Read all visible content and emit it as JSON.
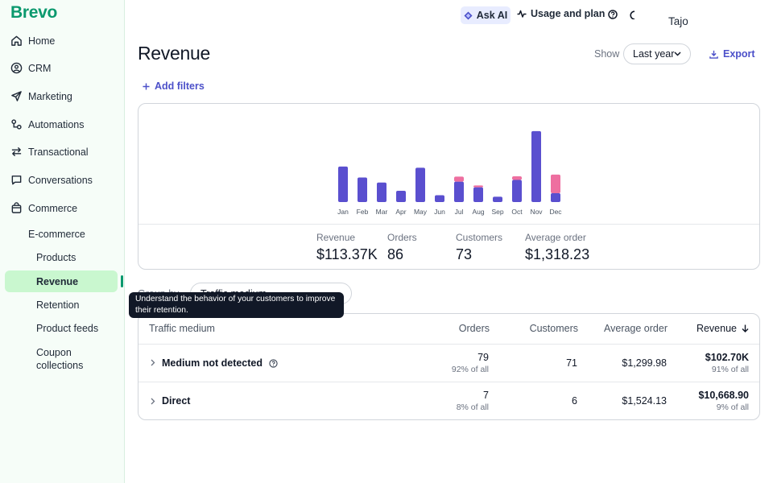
{
  "sidebar": {
    "logo": "Brevo",
    "items": [
      {
        "label": "Home",
        "icon": "home-icon"
      },
      {
        "label": "CRM",
        "icon": "contacts-icon"
      },
      {
        "label": "Marketing",
        "icon": "send-icon"
      },
      {
        "label": "Automations",
        "icon": "automation-icon"
      },
      {
        "label": "Transactional",
        "icon": "transfer-icon"
      },
      {
        "label": "Conversations",
        "icon": "chat-icon"
      },
      {
        "label": "Commerce",
        "icon": "bag-icon"
      }
    ],
    "ecommerce_label": "E-commerce",
    "sub_items": [
      "Products",
      "Revenue",
      "Retention",
      "Product feeds",
      "Coupon collections"
    ]
  },
  "topbar": {
    "ask_ai": "Ask AI",
    "usage": "Usage and plan",
    "user": "Tajo"
  },
  "header": {
    "title": "Revenue",
    "show_label": "Show",
    "range": "Last year",
    "export": "Export",
    "add_filters": "Add filters"
  },
  "chart_data": {
    "type": "bar",
    "stacked": true,
    "categories": [
      "Jan",
      "Feb",
      "Mar",
      "Apr",
      "May",
      "Jun",
      "Jul",
      "Aug",
      "Sep",
      "Oct",
      "Nov",
      "Dec"
    ],
    "series": [
      {
        "color": "#5a4fcf",
        "values": [
          12.0,
          8.3,
          6.6,
          3.8,
          11.6,
          2.3,
          6.9,
          5.0,
          1.8,
          7.5,
          24.0,
          3.0
        ]
      },
      {
        "color": "#ee6fa0",
        "values": [
          0,
          0,
          0,
          0,
          0,
          0,
          1.7,
          0.6,
          0,
          1.2,
          0,
          6.3
        ]
      }
    ],
    "ylim": [
      0,
      24.5
    ],
    "grid": false
  },
  "kpis": [
    {
      "label": "Revenue",
      "value": "$113.37K"
    },
    {
      "label": "Orders",
      "value": "86"
    },
    {
      "label": "Customers",
      "value": "73"
    },
    {
      "label": "Average order",
      "value": "$1,318.23"
    }
  ],
  "groupby": {
    "label": "Group by",
    "value": "Traffic medium"
  },
  "tooltip": "Understand the behavior of your customers to improve their retention.",
  "table": {
    "headers": {
      "medium": "Traffic medium",
      "orders": "Orders",
      "customers": "Customers",
      "avg": "Average order",
      "revenue": "Revenue"
    },
    "rows": [
      {
        "name": "Medium not detected",
        "orders": "79",
        "orders_pct": "92% of all",
        "customers": "71",
        "avg": "$1,299.98",
        "revenue": "$102.70K",
        "revenue_pct": "91% of all"
      },
      {
        "name": "Direct",
        "orders": "7",
        "orders_pct": "8% of all",
        "customers": "6",
        "avg": "$1,524.13",
        "revenue": "$10,668.90",
        "revenue_pct": "9% of all"
      }
    ]
  },
  "colors": {
    "brand_green": "#0b996e",
    "accent_purple": "#4c50c9",
    "bar_primary": "#5a4fcf",
    "bar_secondary": "#ee6fa0",
    "active_nav": "#c9f7cf"
  }
}
